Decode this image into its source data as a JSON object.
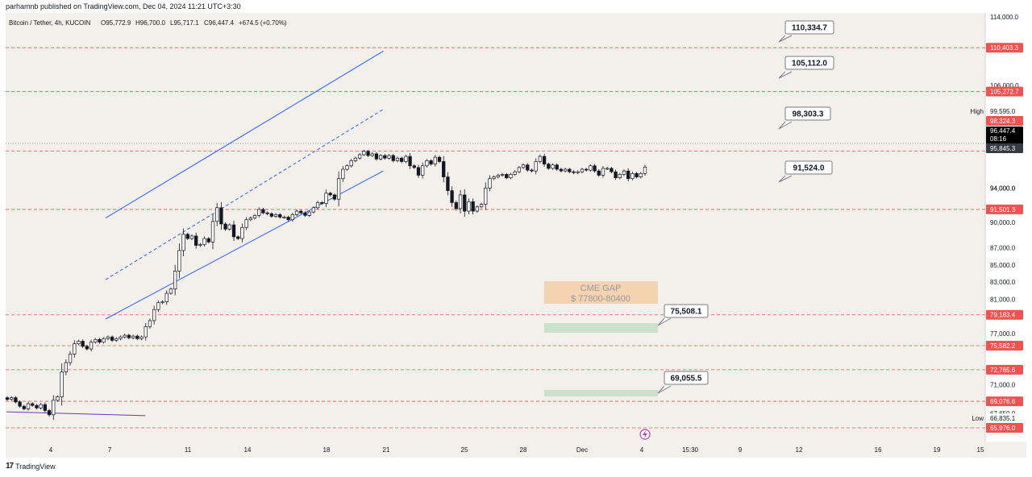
{
  "header": {
    "published": "parhamnb published on TradingView.com, Dec 04, 2024 11:21 UTC+3:30"
  },
  "footer": {
    "brand": "TradingView",
    "logo_glyph": "17"
  },
  "legend": {
    "symbol": "Bitcoin / Tether, 4h, KUCOIN",
    "o": "O95,772.9",
    "h": "H96,700.0",
    "l": "L95,717.1",
    "c": "C96,447.4",
    "change": "+674.5 (+0.70%)"
  },
  "colors": {
    "background": "#f3efea",
    "candle": "#131722",
    "hline": "#ef5350",
    "channel": "#2962ff",
    "trend": "#673ab7",
    "gap_fill": "#f6b26b",
    "zone_fill": "#81c995"
  },
  "annotations": {
    "cme_gap_title": "CME GAP",
    "cme_gap_range": "$ 77800-80400",
    "callouts": [
      "110,334.7",
      "105,112.0",
      "98,303.3",
      "91,524.0",
      "75,508.1",
      "69,055.5"
    ],
    "event_icon": "lightning-icon"
  },
  "chart_data": {
    "type": "candlestick",
    "symbol": "Bitcoin / Tether",
    "timeframe": "4h",
    "exchange": "KUCOIN",
    "y_range": [
      64000,
      114000
    ],
    "x_ticks": [
      "4",
      "7",
      "11",
      "14",
      "18",
      "21",
      "25",
      "28",
      "Dec",
      "4",
      "15:30",
      "9",
      "12",
      "16",
      "19",
      "15"
    ],
    "y_ticks": [
      "114,000.0",
      "106,000.0",
      "102,000.0",
      "94,000.0",
      "90,000.0",
      "87,000.0",
      "85,000.0",
      "83,000.0",
      "81,000.0",
      "77,000.0",
      "73,000.0",
      "71,000.0",
      "67,650.0"
    ],
    "horizontal_levels": [
      110403.3,
      105272.7,
      98324.3,
      91501.3,
      79183.4,
      75582.2,
      72765.6,
      69076.6,
      65976.0
    ],
    "price_labels": [
      {
        "text": "110,403.3",
        "kind": "level"
      },
      {
        "text": "105,272.7",
        "kind": "level"
      },
      {
        "text": "99,595.0",
        "kind": "high",
        "tag": "High"
      },
      {
        "text": "98,324.3",
        "kind": "level"
      },
      {
        "text": "96,447.4",
        "kind": "current",
        "countdown": "08:16"
      },
      {
        "text": "95,845.3",
        "kind": "dark"
      },
      {
        "text": "94,000.0",
        "kind": "tick"
      },
      {
        "text": "91,501.3",
        "kind": "level"
      },
      {
        "text": "79,183.4",
        "kind": "level"
      },
      {
        "text": "75,582.2",
        "kind": "level"
      },
      {
        "text": "72,765.6",
        "kind": "level"
      },
      {
        "text": "69,076.6",
        "kind": "level"
      },
      {
        "text": "66,835.1",
        "kind": "low",
        "tag": "Low"
      },
      {
        "text": "65,976.0",
        "kind": "level"
      }
    ],
    "last_price": 96447.4,
    "high": 99595.0,
    "low": 66835.1,
    "close_series": [
      69300,
      69500,
      69000,
      68500,
      68200,
      68800,
      68600,
      68300,
      68700,
      68000,
      67500,
      69200,
      69600,
      72500,
      73600,
      74600,
      75800,
      76100,
      75500,
      75200,
      76000,
      76300,
      76000,
      76400,
      76600,
      76200,
      76400,
      76600,
      76800,
      76500,
      76700,
      76400,
      76600,
      77800,
      78500,
      79800,
      80600,
      80700,
      81700,
      82200,
      84300,
      86700,
      88600,
      88100,
      88400,
      87300,
      87400,
      88100,
      87700,
      90100,
      91700,
      89800,
      89200,
      89700,
      88300,
      88100,
      89400,
      90300,
      90500,
      90800,
      91500,
      91100,
      91000,
      90700,
      90900,
      90600,
      90600,
      90300,
      90900,
      91300,
      91100,
      90800,
      91200,
      91700,
      92300,
      92200,
      93400,
      93200,
      92700,
      95100,
      96200,
      96600,
      97200,
      97500,
      97900,
      98300,
      97800,
      98000,
      97400,
      97800,
      97500,
      97800,
      97200,
      97500,
      97100,
      97700,
      96600,
      96400,
      95500,
      96600,
      97200,
      96800,
      97600,
      97100,
      95300,
      93700,
      92300,
      91600,
      93200,
      91300,
      92400,
      91300,
      91800,
      92100,
      94000,
      95100,
      95300,
      95500,
      95600,
      95200,
      95600,
      95900,
      96400,
      96700,
      96100,
      96000,
      97100,
      97700,
      96800,
      96300,
      96700,
      96200,
      96000,
      96200,
      95900,
      95800,
      95900,
      96200,
      96100,
      96600,
      96000,
      95500,
      96300,
      96300,
      95900,
      95200,
      95600,
      96000,
      95100,
      95700,
      95300,
      95700,
      96447.4
    ],
    "channel": {
      "upper": [
        [
          5.0,
          90500
        ],
        [
          19.0,
          110000
        ]
      ],
      "mid": [
        [
          5.0,
          83300
        ],
        [
          19.0,
          103200
        ]
      ],
      "lower": [
        [
          5.0,
          78700
        ],
        [
          19.0,
          96000
        ]
      ]
    },
    "trendline": [
      [
        0.0,
        67850
      ],
      [
        7.0,
        67400
      ]
    ],
    "zones": [
      {
        "label": "CME GAP",
        "from": 77800,
        "to": 80400
      },
      {
        "from": 74900,
        "to": 75800
      },
      {
        "from": 68600,
        "to": 69250
      }
    ]
  }
}
